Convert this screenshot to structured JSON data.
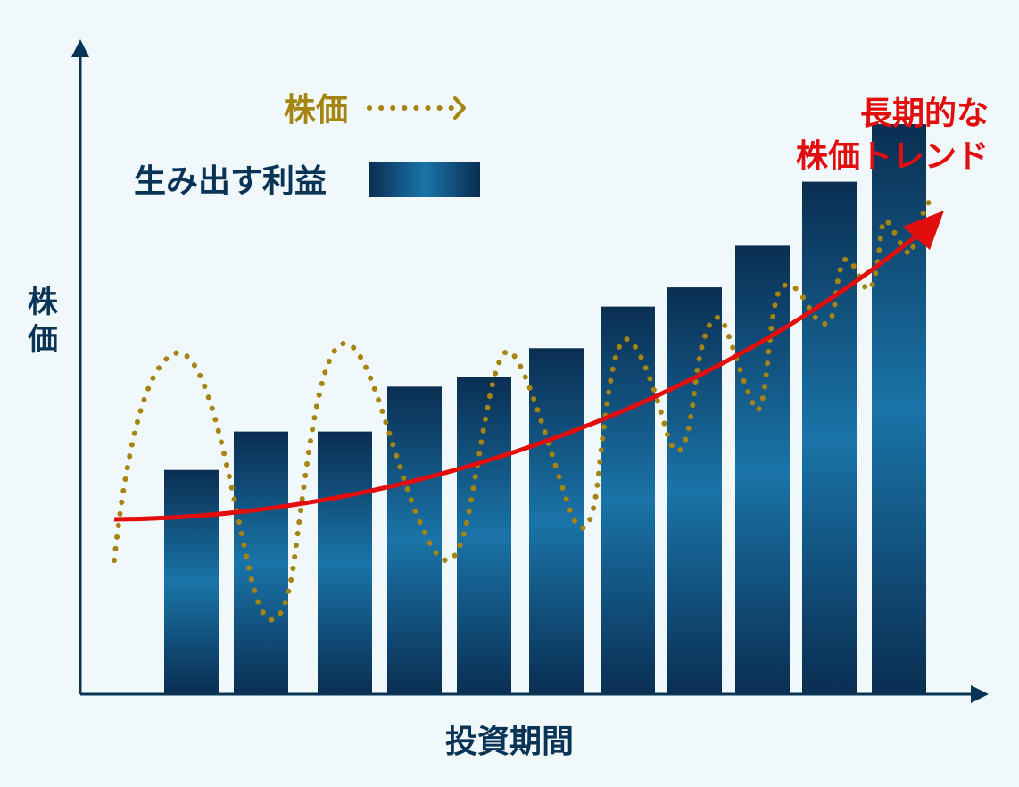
{
  "axes": {
    "y_label": "株価",
    "x_label": "投資期間"
  },
  "legend": {
    "price_label": "株価",
    "profit_label": "生み出す利益"
  },
  "trend": {
    "line1": "長期的な",
    "line2": "株価トレンド"
  },
  "colors": {
    "background": "#f0f8fc",
    "axis": "#0a3456",
    "bar_dark": "#0a2e52",
    "bar_light": "#1a74a8",
    "price_line": "#a58410",
    "trend_line": "#e20d0d"
  },
  "chart_data": {
    "type": "bar",
    "series": [
      {
        "values": [
          0.35,
          0.41,
          0.41,
          0.48,
          0.495,
          0.54,
          0.605,
          0.635,
          0.7,
          0.8,
          0.89
        ]
      }
    ],
    "overlay": {
      "price_line_style": "dotted",
      "trend_line_style": "solid-arrow"
    },
    "xlabel": "投資期間",
    "ylabel": "株価",
    "grid": false
  }
}
